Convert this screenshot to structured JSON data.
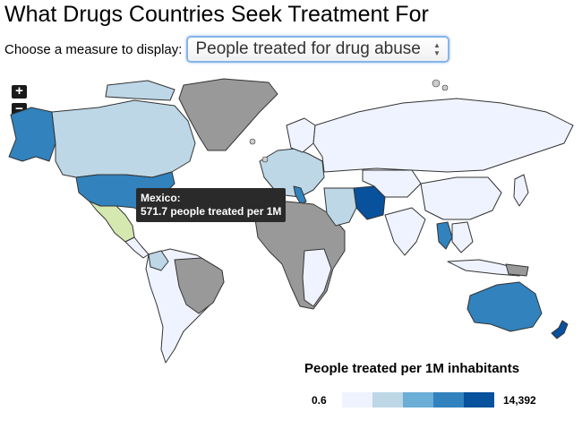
{
  "title": "What Drugs Countries Seek Treatment For",
  "measure": {
    "label": "Choose a measure to display:",
    "selected": "People treated for drug abuse"
  },
  "zoom": {
    "in_label": "+",
    "out_label": "−"
  },
  "tooltip": {
    "country": "Mexico:",
    "value": "571.7 people treated per 1M"
  },
  "legend": {
    "title": "People treated per 1M inhabitants",
    "min": "0.6",
    "max": "14,392",
    "colors": [
      "#eff3ff",
      "#bdd7e7",
      "#6baed6",
      "#3182bd",
      "#08519c"
    ]
  },
  "colors": {
    "no_data": "#999999",
    "ocean": "#ffffff",
    "border": "#333333",
    "highlight": "#d4e8b0"
  }
}
